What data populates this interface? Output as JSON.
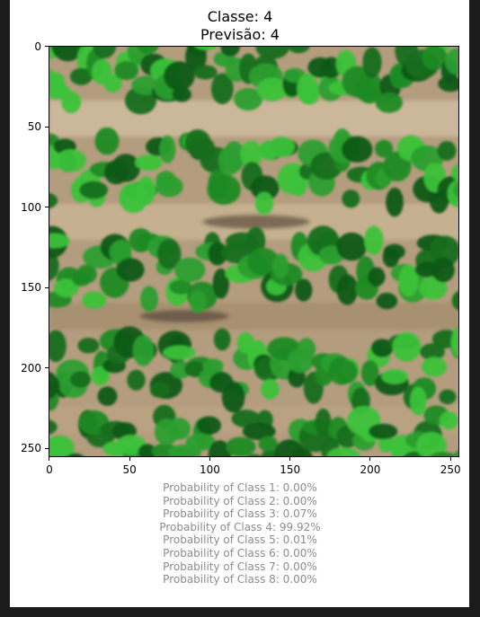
{
  "figure": {
    "title_line1": "Classe: 4",
    "title_line2": "Previsão: 4"
  },
  "image": {
    "description_icon": "crop-field-image",
    "y_ticks": [
      "0",
      "50",
      "100",
      "150",
      "200",
      "250"
    ],
    "x_ticks": [
      "0",
      "50",
      "100",
      "150",
      "200",
      "250"
    ]
  },
  "probabilities": [
    "Probability of Class 1: 0.00%",
    "Probability of Class 2: 0.00%",
    "Probability of Class 3: 0.07%",
    "Probability of Class 4: 99.92%",
    "Probability of Class 5: 0.01%",
    "Probability of Class 6: 0.00%",
    "Probability of Class 7: 0.00%",
    "Probability of Class 8: 0.00%"
  ],
  "colors": {
    "soil": "#b49c7e",
    "crop_dark": "#0f5a14",
    "crop_mid": "#1f8a25",
    "crop_light": "#3bc23a"
  }
}
